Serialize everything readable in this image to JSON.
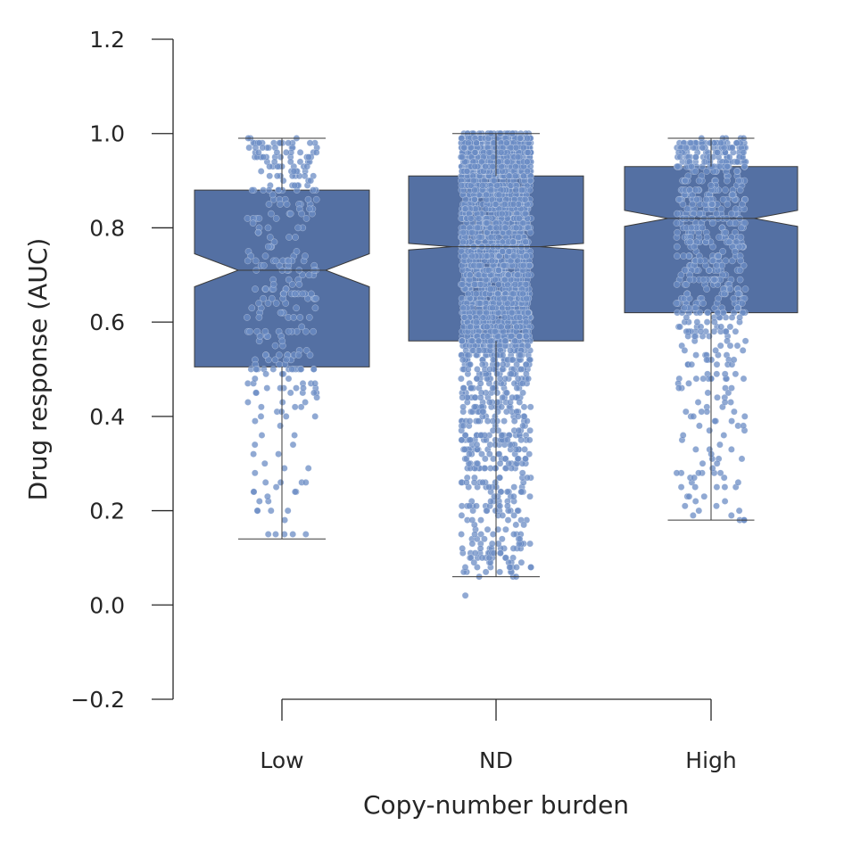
{
  "chart_data": {
    "type": "box",
    "xlabel": "Copy-number burden",
    "ylabel": "Drug response (AUC)",
    "ylim": [
      -0.2,
      1.2
    ],
    "yticks": [
      -0.2,
      0.0,
      0.2,
      0.4,
      0.6,
      0.8,
      1.0,
      1.2
    ],
    "ytick_labels": [
      "−0.2",
      "0.0",
      "0.2",
      "0.4",
      "0.6",
      "0.8",
      "1.0",
      "1.2"
    ],
    "categories": [
      "Low",
      "ND",
      "High"
    ],
    "boxes": [
      {
        "category": "Low",
        "whisker_low": 0.14,
        "q1": 0.505,
        "median": 0.71,
        "q3": 0.88,
        "whisker_high": 0.99,
        "notch_low": 0.675,
        "notch_high": 0.745,
        "n_points": 330
      },
      {
        "category": "ND",
        "whisker_low": 0.06,
        "q1": 0.56,
        "median": 0.76,
        "q3": 0.91,
        "whisker_high": 1.0,
        "notch_low": 0.753,
        "notch_high": 0.767,
        "n_points": 2400
      },
      {
        "category": "High",
        "whisker_low": 0.18,
        "q1": 0.62,
        "median": 0.82,
        "q3": 0.93,
        "whisker_high": 0.99,
        "notch_low": 0.803,
        "notch_high": 0.837,
        "n_points": 620
      }
    ],
    "grid": false,
    "box_color": "#5470a3",
    "box_edge_color": "#3a3a3a",
    "point_color": "#6b8cc4",
    "point_edge_color": "#ffffff",
    "axis_color": "#262626"
  }
}
